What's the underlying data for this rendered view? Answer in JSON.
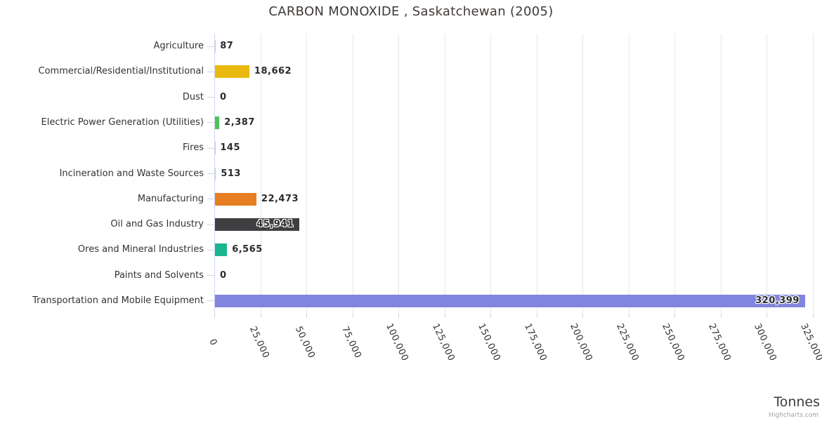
{
  "title": "CARBON MONOXIDE , Saskatchewan (2005)",
  "credits": "Highcharts.com",
  "chart_data": {
    "type": "bar",
    "title": "CARBON MONOXIDE , Saskatchewan (2005)",
    "xlabel": "Tonnes",
    "ylabel": "",
    "orientation": "horizontal",
    "grid": true,
    "legend": false,
    "xlim": [
      0,
      325000
    ],
    "tick_interval": 25000,
    "tick_labels": [
      "0",
      "25,000",
      "50,000",
      "75,000",
      "100,000",
      "125,000",
      "150,000",
      "175,000",
      "200,000",
      "225,000",
      "250,000",
      "275,000",
      "300,000",
      "325,000"
    ],
    "categories": [
      "Agriculture",
      "Commercial/Residential/Institutional",
      "Dust",
      "Electric Power Generation (Utilities)",
      "Fires",
      "Incineration and Waste Sources",
      "Manufacturing",
      "Oil and Gas Industry",
      "Ores and Mineral Industries",
      "Paints and Solvents",
      "Transportation and Mobile Equipment"
    ],
    "values": [
      87,
      18662,
      0,
      2387,
      145,
      513,
      22473,
      45941,
      6565,
      0,
      320399
    ],
    "value_labels": [
      "87",
      "18,662",
      "0",
      "2,387",
      "145",
      "513",
      "22,473",
      "45,941",
      "6,565",
      "0",
      "320,399"
    ],
    "bar_colors": [
      null,
      "#eab90f",
      null,
      "#4cc15e",
      null,
      null,
      "#e67f22",
      "#3f3f42",
      "#1bb68e",
      null,
      "#8085dd"
    ]
  },
  "colors": {
    "grid": "#e6e6e6",
    "axis_line": "#ccd6eb",
    "title_text": "#3f3a37",
    "category_text": "#333333",
    "value_text": "#2b2b2b",
    "credits_text": "#a0a0a0"
  }
}
